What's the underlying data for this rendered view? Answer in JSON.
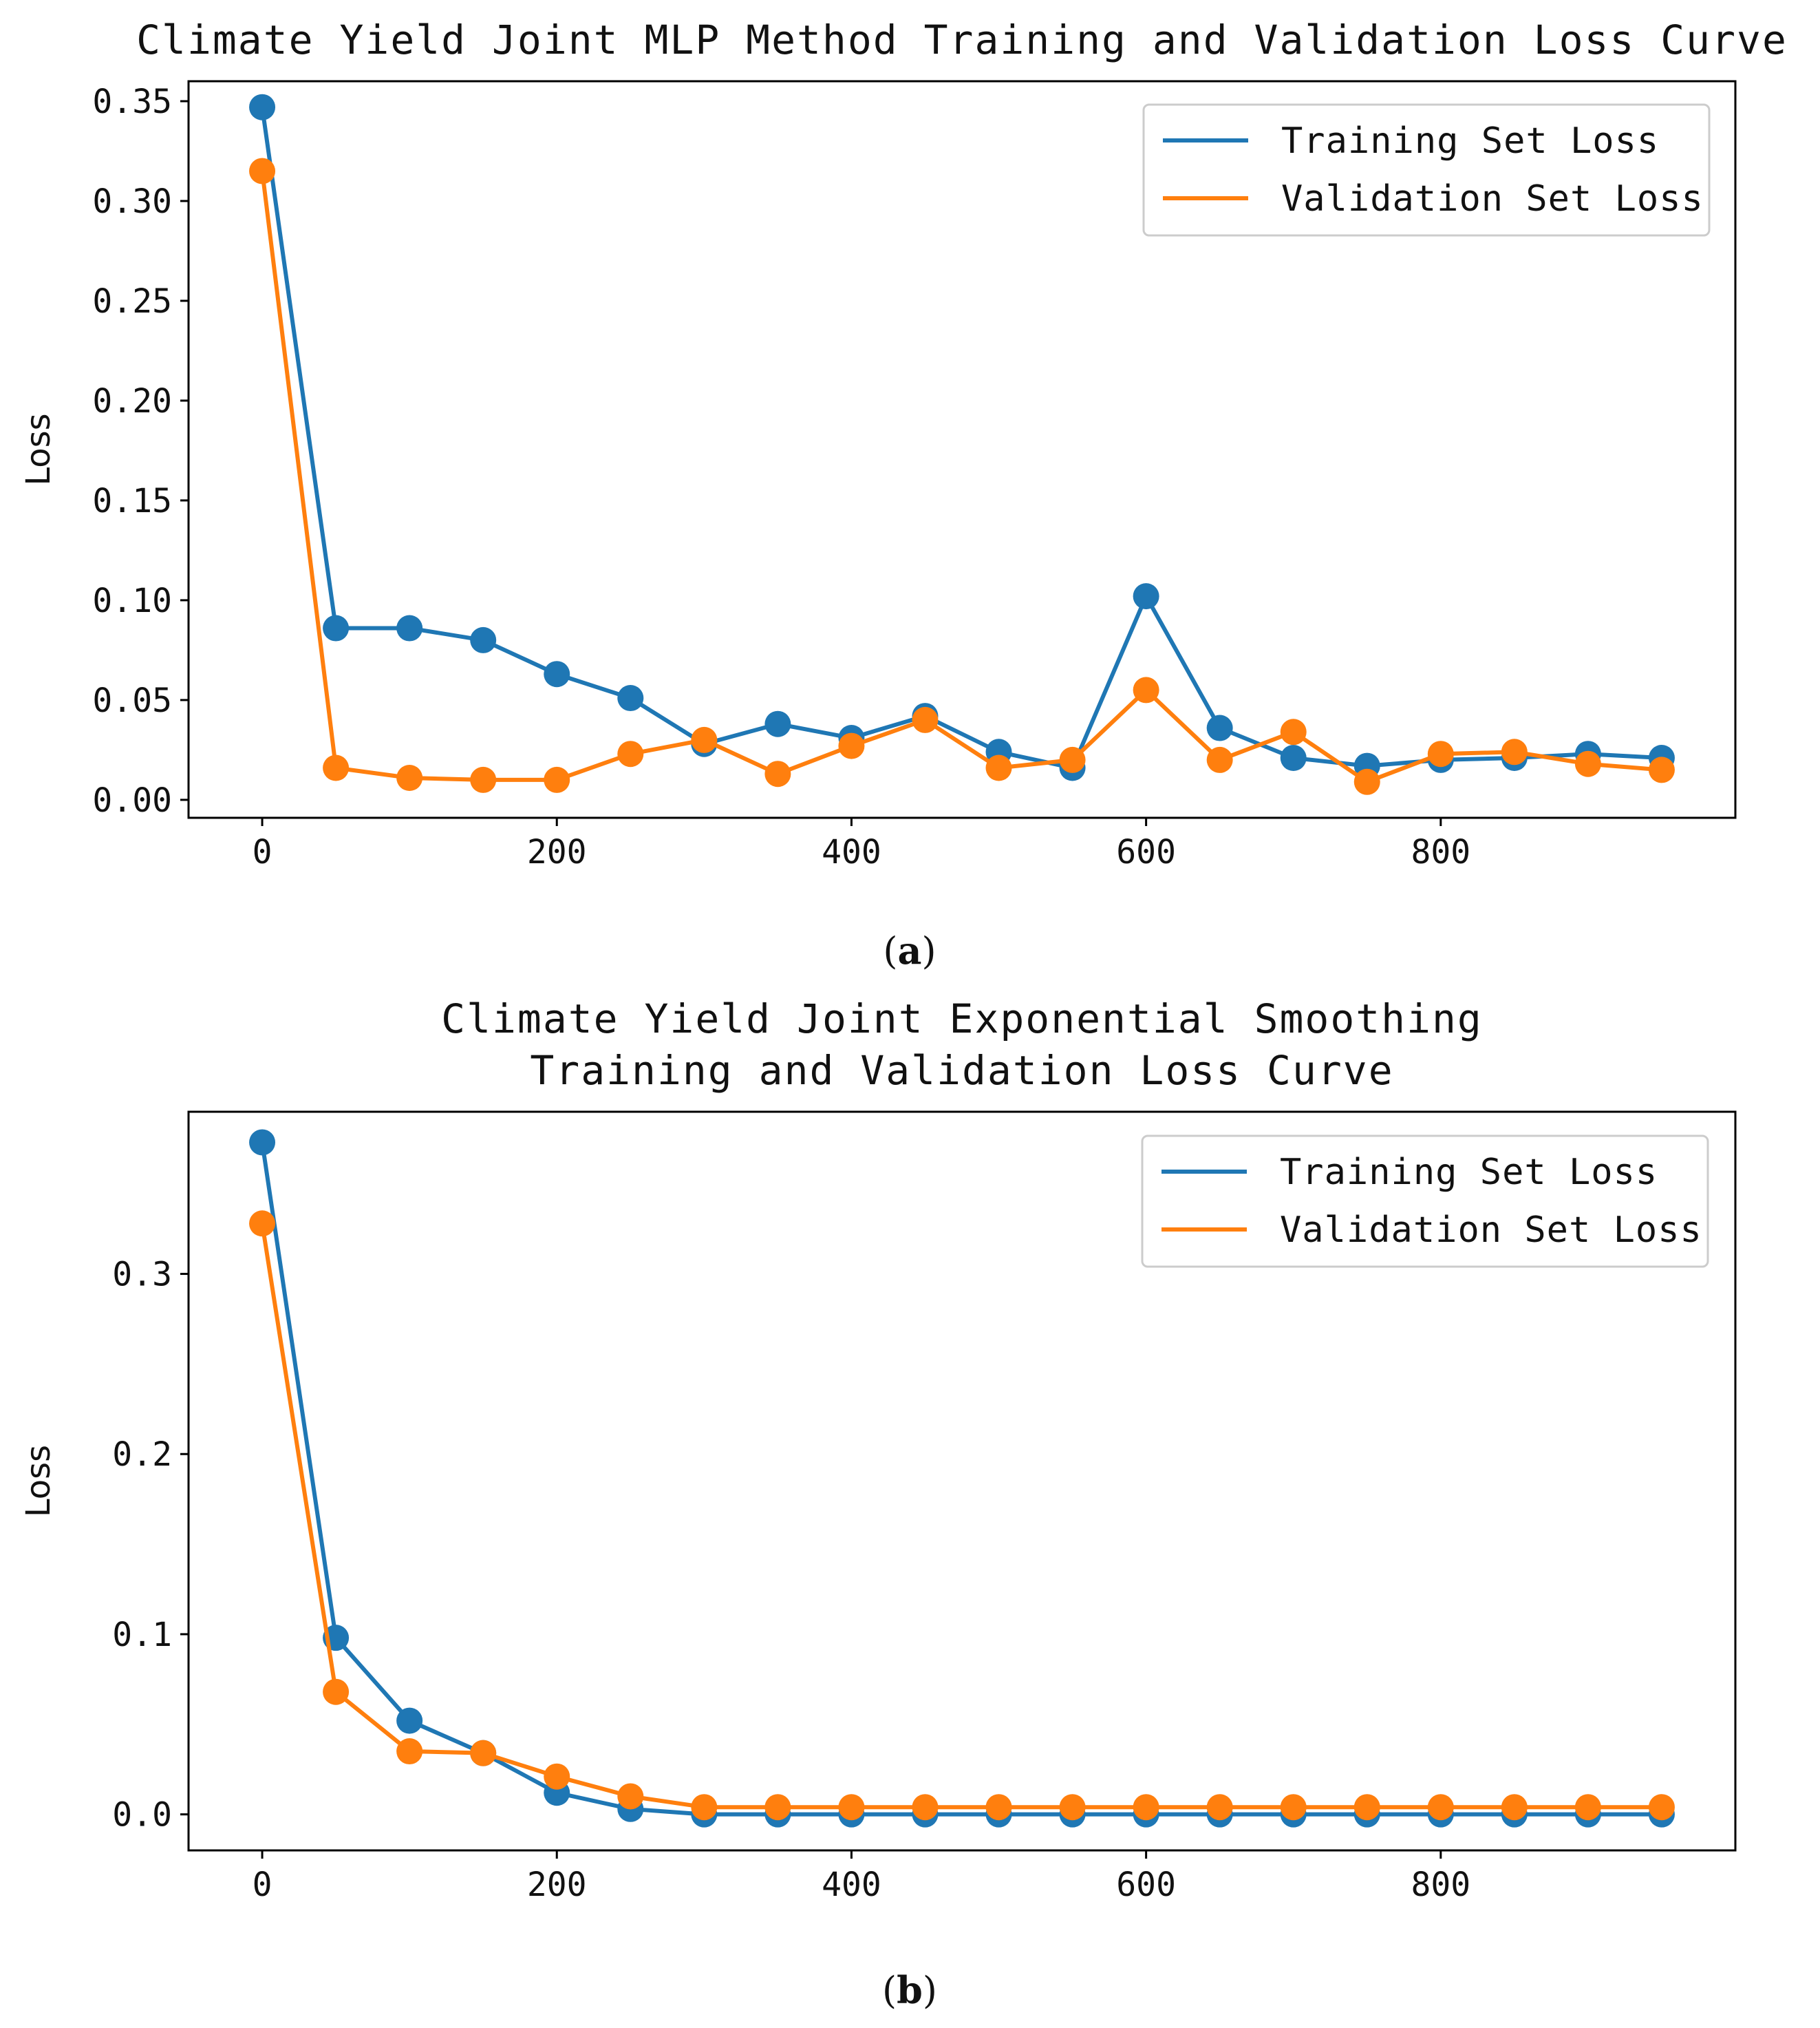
{
  "colors": {
    "training": "#1f77b4",
    "validation": "#ff7f0e"
  },
  "chart_data": [
    {
      "type": "line",
      "title": [
        "Climate Yield Joint MLP Method Training and Validation Loss Curve"
      ],
      "xlabel": "",
      "ylabel": "Loss",
      "xlim": [
        -50,
        1000
      ],
      "ylim": [
        -0.009,
        0.36
      ],
      "xticks": [
        0,
        200,
        400,
        600,
        800
      ],
      "xtick_labels": [
        "0",
        "200",
        "400",
        "600",
        "800"
      ],
      "yticks": [
        0.0,
        0.05,
        0.1,
        0.15,
        0.2,
        0.25,
        0.3,
        0.35
      ],
      "ytick_labels": [
        "0.00",
        "0.05",
        "0.10",
        "0.15",
        "0.20",
        "0.25",
        "0.30",
        "0.35"
      ],
      "legend_position": "top-right",
      "caption_label": "a",
      "x": [
        0,
        50,
        100,
        150,
        200,
        250,
        300,
        350,
        400,
        450,
        500,
        550,
        600,
        650,
        700,
        750,
        800,
        850,
        900,
        950
      ],
      "series": [
        {
          "name": "Training Set Loss",
          "color_key": "training",
          "values": [
            0.347,
            0.086,
            0.086,
            0.08,
            0.063,
            0.051,
            0.028,
            0.038,
            0.031,
            0.042,
            0.024,
            0.016,
            0.102,
            0.036,
            0.021,
            0.017,
            0.02,
            0.021,
            0.023,
            0.021
          ]
        },
        {
          "name": "Validation Set Loss",
          "color_key": "validation",
          "values": [
            0.315,
            0.016,
            0.011,
            0.01,
            0.01,
            0.023,
            0.03,
            0.013,
            0.027,
            0.04,
            0.016,
            0.02,
            0.055,
            0.02,
            0.034,
            0.009,
            0.023,
            0.024,
            0.018,
            0.015
          ]
        }
      ]
    },
    {
      "type": "line",
      "title": [
        "Climate Yield Joint Exponential Smoothing",
        "Training and Validation Loss Curve"
      ],
      "xlabel": "",
      "ylabel": "Loss",
      "xlim": [
        -50,
        1000
      ],
      "ylim": [
        -0.02,
        0.39
      ],
      "xticks": [
        0,
        200,
        400,
        600,
        800
      ],
      "xtick_labels": [
        "0",
        "200",
        "400",
        "600",
        "800"
      ],
      "yticks": [
        0.0,
        0.1,
        0.2,
        0.3
      ],
      "ytick_labels": [
        "0.0",
        "0.1",
        "0.2",
        "0.3"
      ],
      "legend_position": "top-right",
      "caption_label": "b",
      "x": [
        0,
        50,
        100,
        150,
        200,
        250,
        300,
        350,
        400,
        450,
        500,
        550,
        600,
        650,
        700,
        750,
        800,
        850,
        900,
        950
      ],
      "series": [
        {
          "name": "Training Set Loss",
          "color_key": "training",
          "values": [
            0.373,
            0.098,
            0.052,
            0.034,
            0.012,
            0.003,
            0.0,
            0.0,
            0.0,
            0.0,
            0.0,
            0.0,
            0.0,
            0.0,
            0.0,
            0.0,
            0.0,
            0.0,
            0.0,
            0.0
          ]
        },
        {
          "name": "Validation Set Loss",
          "color_key": "validation",
          "values": [
            0.328,
            0.068,
            0.035,
            0.034,
            0.021,
            0.01,
            0.004,
            0.004,
            0.004,
            0.004,
            0.004,
            0.004,
            0.004,
            0.004,
            0.004,
            0.004,
            0.004,
            0.004,
            0.004,
            0.004
          ]
        }
      ]
    }
  ]
}
